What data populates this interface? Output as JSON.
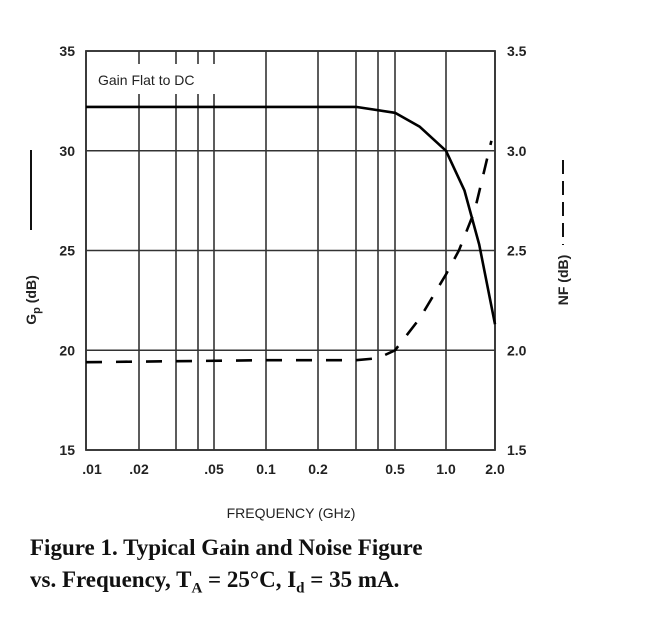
{
  "chart_data": {
    "type": "line",
    "title": "Figure 1.  Typical Gain and Noise Figure vs. Frequency",
    "caption": {
      "line1": "Figure 1.  Typical Gain and Noise Figure",
      "line2_prefix": "vs. Frequency, T",
      "ta_sub": "A",
      "line2_mid": " = 25°C, I",
      "id_sub": "d",
      "line2_suffix": " = 35 mA."
    },
    "xlabel": "FREQUENCY (GHz)",
    "xscale": "log",
    "xlim": [
      0.01,
      2.0
    ],
    "xticks": [
      0.01,
      0.02,
      0.05,
      0.1,
      0.2,
      0.5,
      1.0,
      2.0
    ],
    "xtick_labels": [
      ".01",
      ".02",
      ".05",
      "0.1",
      "0.2",
      "0.5",
      "1.0",
      "2.0"
    ],
    "xgrid": [
      0.01,
      0.02,
      0.03,
      0.04,
      0.05,
      0.1,
      0.2,
      0.3,
      0.4,
      0.5,
      1.0,
      2.0
    ],
    "ylabel_left": {
      "main": "G",
      "sub": "p",
      "rest": " (dB)"
    },
    "ylim_left": [
      15,
      35
    ],
    "yticks_left": [
      "35",
      "30",
      "25",
      "20",
      "15"
    ],
    "ylabel_right": "NF (dB)",
    "ylim_right": [
      1.5,
      3.5
    ],
    "yticks_right": [
      "3.5",
      "3.0",
      "2.5",
      "2.0",
      "1.5"
    ],
    "annotation": "Gain Flat to DC",
    "grid": true,
    "series": [
      {
        "name": "Gp (dB)",
        "axis": "left",
        "style": "solid",
        "x": [
          0.01,
          0.1,
          0.3,
          0.5,
          0.7,
          1.0,
          1.3,
          1.6,
          2.0
        ],
        "y": [
          32.2,
          32.2,
          32.2,
          31.9,
          31.2,
          30.0,
          28.0,
          25.3,
          21.3
        ]
      },
      {
        "name": "NF (dB)",
        "axis": "right",
        "style": "dashed",
        "x": [
          0.01,
          0.1,
          0.3,
          0.4,
          0.5,
          0.7,
          1.0,
          1.2,
          1.5,
          1.9
        ],
        "y": [
          1.94,
          1.95,
          1.95,
          1.96,
          2.0,
          2.16,
          2.38,
          2.5,
          2.7,
          3.05
        ]
      }
    ]
  }
}
